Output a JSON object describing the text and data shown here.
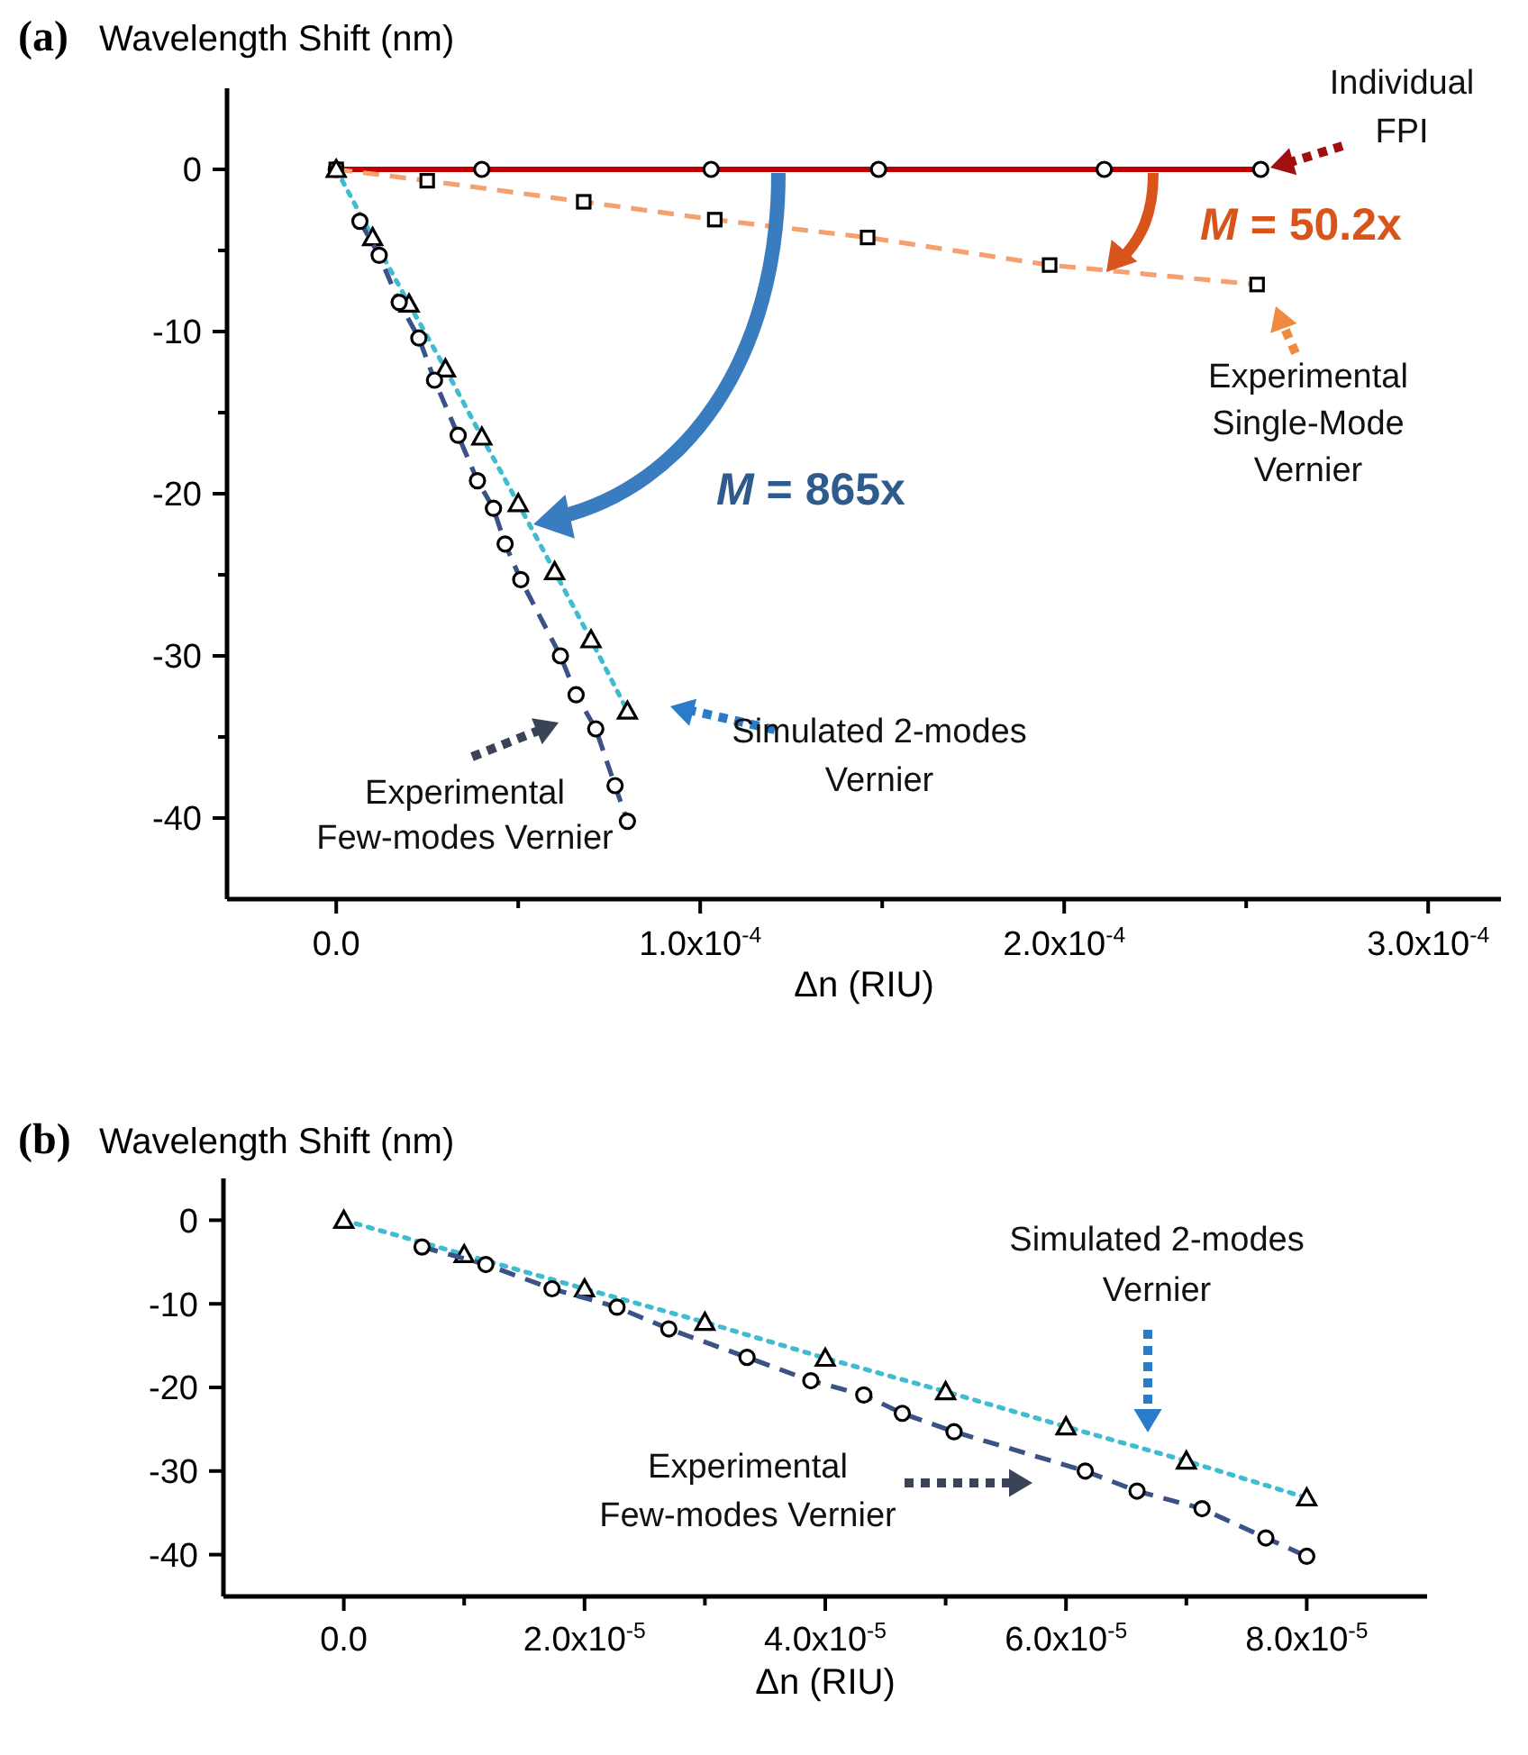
{
  "chart_data": [
    {
      "type": "line",
      "title": "(a)",
      "ylabel": "Wavelength Shift (nm)",
      "xlabel": "Δn (RIU)",
      "xlim": [
        -3e-05,
        0.00032
      ],
      "ylim": [
        -45,
        5
      ],
      "xticks": [
        {
          "value": 0,
          "label": "0.0"
        },
        {
          "value": 5e-05,
          "label": null
        },
        {
          "value": 0.0001,
          "label": "1.0x10$^{-4}$"
        },
        {
          "value": 0.00015,
          "label": null
        },
        {
          "value": 0.0002,
          "label": "2.0x10$^{-4}$"
        },
        {
          "value": 0.00025,
          "label": null
        },
        {
          "value": 0.0003,
          "label": "3.0x10$^{-4}$"
        }
      ],
      "yticks": [
        0,
        {
          "value": -5,
          "label": null
        },
        -10,
        {
          "value": -15,
          "label": null
        },
        -20,
        {
          "value": -25,
          "label": null
        },
        -30,
        {
          "value": -35,
          "label": null
        },
        -40
      ],
      "annotations": [
        "M = 50.2x",
        "M = 865x"
      ],
      "series": [
        {
          "name": "Individual FPI",
          "color": "#c00000",
          "marker": "circle",
          "line_style": "solid",
          "x": [
            0,
            4e-05,
            0.000103,
            0.000149,
            0.000211,
            0.000254
          ],
          "values": [
            0,
            0,
            0,
            0,
            0,
            0
          ]
        },
        {
          "name": "Experimental Single-Mode Vernier",
          "color": "#f4a070",
          "marker": "square",
          "line_style": "dashed",
          "x": [
            0,
            2.5e-05,
            6.8e-05,
            0.000104,
            0.000146,
            0.000196,
            0.000253
          ],
          "values": [
            0,
            -0.7,
            -2.0,
            -3.1,
            -4.2,
            -5.9,
            -7.1
          ]
        },
        {
          "name": "Simulated 2-modes Vernier",
          "color": "#40bcd0",
          "marker": "triangle",
          "line_style": "dotted",
          "x": [
            0,
            1e-05,
            2e-05,
            3e-05,
            4e-05,
            5e-05,
            6e-05,
            7e-05,
            8e-05
          ],
          "values": [
            0,
            -4.2,
            -8.3,
            -12.3,
            -16.5,
            -20.6,
            -24.8,
            -29.0,
            -33.4
          ]
        },
        {
          "name": "Experimental Few-modes Vernier",
          "color": "#3a5285",
          "marker": "circle",
          "line_style": "dashed",
          "x": [
            6.5e-06,
            1.18e-05,
            1.73e-05,
            2.27e-05,
            2.7e-05,
            3.35e-05,
            3.88e-05,
            4.32e-05,
            4.64e-05,
            5.07e-05,
            6.16e-05,
            6.59e-05,
            7.13e-05,
            7.66e-05,
            8e-05
          ],
          "values": [
            -3.2,
            -5.3,
            -8.2,
            -10.4,
            -13.0,
            -16.4,
            -19.2,
            -20.9,
            -23.1,
            -25.3,
            -30.0,
            -32.4,
            -34.5,
            -38.0,
            -40.2
          ]
        }
      ]
    },
    {
      "type": "line",
      "title": "(b)",
      "ylabel": "Wavelength Shift (nm)",
      "xlabel": "Δn (RIU)",
      "xlim": [
        -1e-05,
        9e-05
      ],
      "ylim": [
        -45,
        5
      ],
      "xticks": [
        {
          "value": 0,
          "label": "0.0"
        },
        {
          "value": 1e-05,
          "label": null
        },
        {
          "value": 2e-05,
          "label": "2.0x10$^{-5}$"
        },
        {
          "value": 3e-05,
          "label": null
        },
        {
          "value": 4e-05,
          "label": "4.0x10$^{-5}$"
        },
        {
          "value": 5e-05,
          "label": null
        },
        {
          "value": 6e-05,
          "label": "6.0x10$^{-5}$"
        },
        {
          "value": 7e-05,
          "label": null
        },
        {
          "value": 8e-05,
          "label": "8.0x10$^{-5}$"
        }
      ],
      "yticks": [
        0,
        -10,
        -20,
        -30,
        -40
      ],
      "series": [
        {
          "name": "Simulated 2-modes Vernier",
          "color": "#40bcd0",
          "marker": "triangle",
          "line_style": "dotted",
          "x": [
            0,
            1e-05,
            2e-05,
            3e-05,
            4e-05,
            5e-05,
            6e-05,
            7e-05,
            8e-05
          ],
          "values": [
            0,
            -4.1,
            -8.2,
            -12.2,
            -16.5,
            -20.5,
            -24.7,
            -28.8,
            -33.2
          ]
        },
        {
          "name": "Experimental Few-modes Vernier",
          "color": "#3a5285",
          "marker": "circle",
          "line_style": "dashed",
          "x": [
            6.5e-06,
            1.18e-05,
            1.73e-05,
            2.27e-05,
            2.7e-05,
            3.35e-05,
            3.88e-05,
            4.32e-05,
            4.64e-05,
            5.07e-05,
            6.16e-05,
            6.59e-05,
            7.13e-05,
            7.66e-05,
            8e-05
          ],
          "values": [
            -3.2,
            -5.3,
            -8.2,
            -10.4,
            -13.0,
            -16.4,
            -19.2,
            -20.9,
            -23.1,
            -25.3,
            -30.0,
            -32.4,
            -34.5,
            -38.0,
            -40.2
          ]
        }
      ]
    }
  ]
}
